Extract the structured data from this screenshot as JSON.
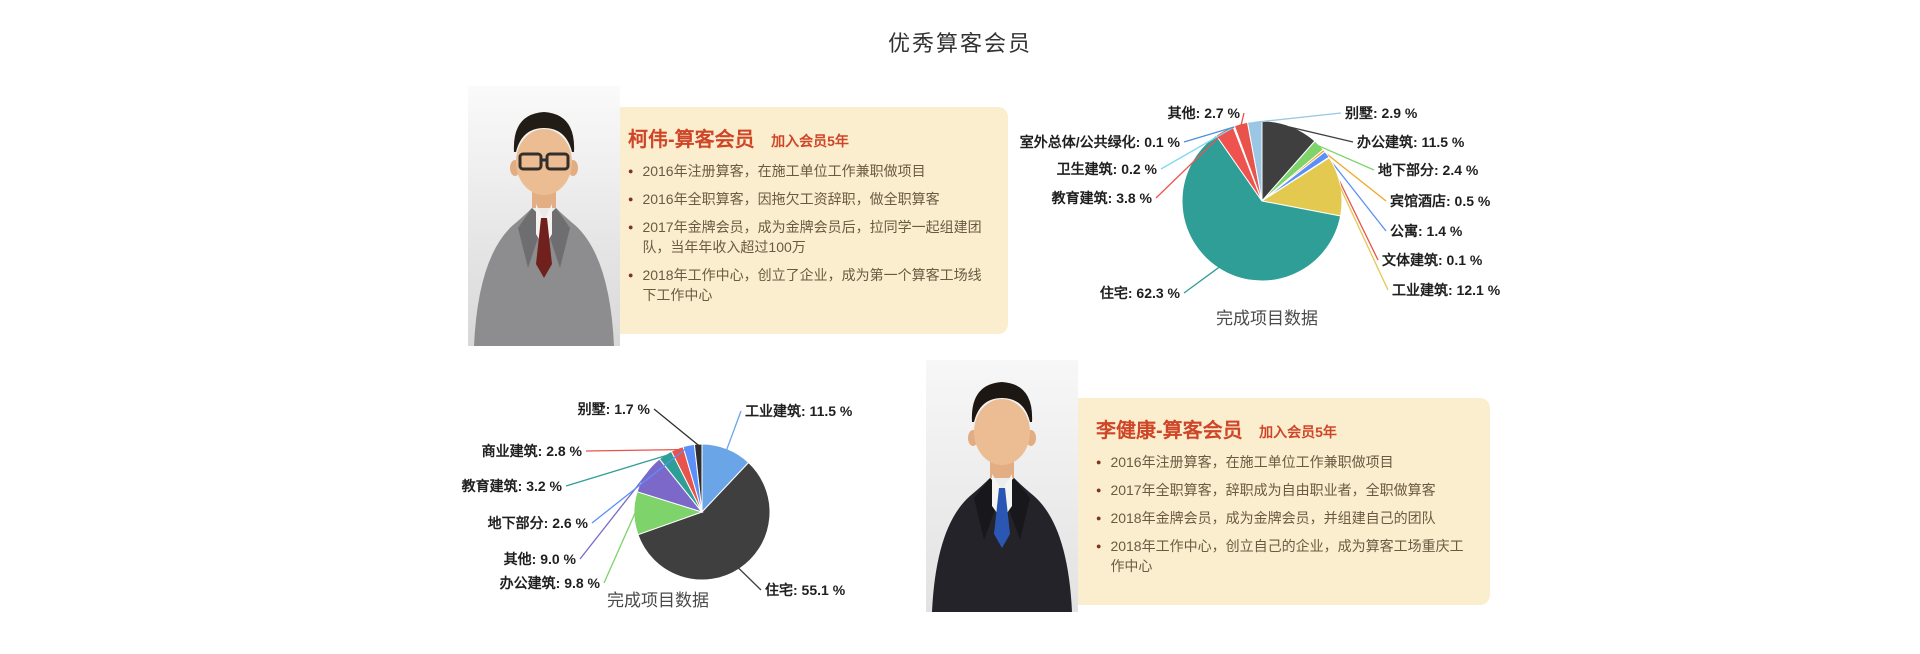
{
  "page": {
    "title": "优秀算客会员"
  },
  "members": [
    {
      "name": "柯伟-算客会员",
      "join": "加入会员5年",
      "bullets": [
        "2016年注册算客，在施工单位工作兼职做项目",
        "2016年全职算客，因拖欠工资辞职，做全职算客",
        "2017年金牌会员，成为金牌会员后，拉同学一起组建团队，当年年收入超过100万",
        "2018年工作中心，创立了企业，成为第一个算客工场线下工作中心"
      ]
    },
    {
      "name": "李健康-算客会员",
      "join": "加入会员5年",
      "bullets": [
        "2016年注册算客，在施工单位工作兼职做项目",
        "2017年全职算客，辞职成为自由职业者，全职做算客",
        "2018年金牌会员，成为金牌会员，并组建自己的团队",
        "2018年工作中心，创立自己的企业，成为算客工场重庆工作中心"
      ]
    }
  ],
  "chart_data": [
    {
      "type": "pie",
      "title": "完成项目数据",
      "unit": "%",
      "legend_position": "labels-around-pie-with-leader-lines",
      "slices": [
        {
          "label": "办公建筑",
          "value": 11.5,
          "display": "办公建筑: 11.5 %",
          "color": "#3f3f3f"
        },
        {
          "label": "地下部分",
          "value": 2.4,
          "display": "地下部分: 2.4 %",
          "color": "#7ed36b"
        },
        {
          "label": "宾馆酒店",
          "value": 0.5,
          "display": "宾馆酒店: 0.5 %",
          "color": "#f5a623"
        },
        {
          "label": "公寓",
          "value": 1.4,
          "display": "公寓: 1.4 %",
          "color": "#5b8ff9"
        },
        {
          "label": "文体建筑",
          "value": 0.1,
          "display": "文体建筑: 0.1 %",
          "color": "#e8534c"
        },
        {
          "label": "工业建筑",
          "value": 12.1,
          "display": "工业建筑: 12.1 %",
          "color": "#e3c94f"
        },
        {
          "label": "住宅",
          "value": 62.3,
          "display": "住宅: 62.3 %",
          "color": "#2e9e96"
        },
        {
          "label": "教育建筑",
          "value": 3.8,
          "display": "教育建筑: 3.8 %",
          "color": "#ef5350"
        },
        {
          "label": "卫生建筑",
          "value": 0.2,
          "display": "卫生建筑: 0.2 %",
          "color": "#7fd8ef"
        },
        {
          "label": "室外总体/公共绿化",
          "value": 0.1,
          "display": "室外总体/公共绿化: 0.1 %",
          "color": "#4a90d9"
        },
        {
          "label": "其他",
          "value": 2.7,
          "display": "其他: 2.7 %",
          "color": "#e8534c"
        },
        {
          "label": "别墅",
          "value": 2.9,
          "display": "别墅: 2.9 %",
          "color": "#9bc7e4"
        }
      ]
    },
    {
      "type": "pie",
      "title": "完成项目数据",
      "unit": "%",
      "legend_position": "labels-around-pie-with-leader-lines",
      "slices": [
        {
          "label": "工业建筑",
          "value": 11.5,
          "display": "工业建筑: 11.5 %",
          "color": "#6aa5e8"
        },
        {
          "label": "住宅",
          "value": 55.1,
          "display": "住宅: 55.1 %",
          "color": "#3f3f3f"
        },
        {
          "label": "办公建筑",
          "value": 9.8,
          "display": "办公建筑: 9.8 %",
          "color": "#7ed36b"
        },
        {
          "label": "其他",
          "value": 9.0,
          "display": "其他: 9.0 %",
          "color": "#7b68c8"
        },
        {
          "label": "教育建筑",
          "value": 3.2,
          "display": "教育建筑: 3.2 %",
          "color": "#2e9e96"
        },
        {
          "label": "商业建筑",
          "value": 2.8,
          "display": "商业建筑: 2.8 %",
          "color": "#e8534c"
        },
        {
          "label": "地下部分",
          "value": 2.6,
          "display": "地下部分: 2.6 %",
          "color": "#5b8ff9"
        },
        {
          "label": "别墅",
          "value": 1.7,
          "display": "别墅: 1.7 %",
          "color": "#2f2f2f"
        }
      ]
    }
  ],
  "colors": {
    "card_background": "#fbeecf",
    "accent_red": "#cf4527",
    "bullet_text": "#6b5a41",
    "page_title_text": "#333333",
    "pie_label_text": "#1f1f1f"
  }
}
